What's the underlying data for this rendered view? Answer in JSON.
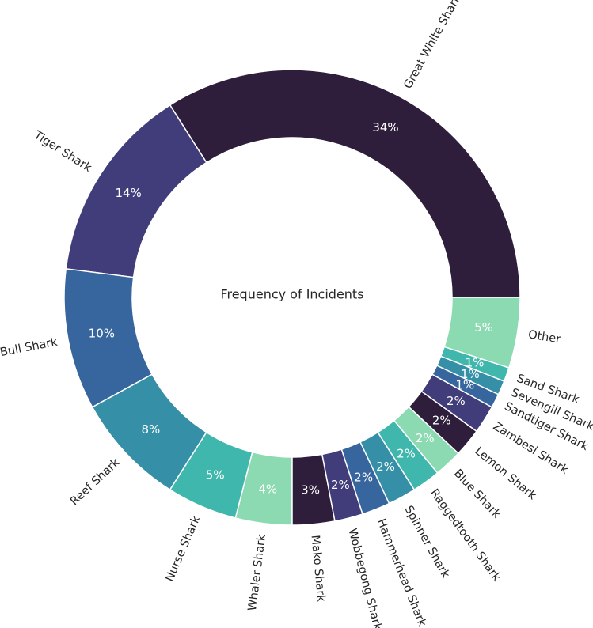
{
  "chart_data": {
    "type": "pie",
    "variant": "donut",
    "title": "Frequency of Incidents",
    "categories": [
      "Great White Shark",
      "Tiger Shark",
      "Bull Shark",
      "Reef Shark",
      "Nurse Shark",
      "Whaler Shark",
      "Mako Shark",
      "Wobbegong Shark",
      "Hammerhead Shark",
      "Spinner Shark",
      "Raggedtooth Shark",
      "Blue Shark",
      "Lemon Shark",
      "Zambesi Shark",
      "Sandtiger Shark",
      "Sevengill Shark",
      "Sand Shark",
      "Other"
    ],
    "values": [
      34,
      14,
      10,
      8,
      5,
      4,
      3,
      2,
      2,
      2,
      2,
      2,
      2,
      2,
      1,
      1,
      1,
      5
    ],
    "value_labels": [
      "34%",
      "14%",
      "10%",
      "8%",
      "5%",
      "4%",
      "3%",
      "2%",
      "2%",
      "2%",
      "2%",
      "2%",
      "2%",
      "2%",
      "1%",
      "1%",
      "1%",
      "5%"
    ],
    "colors": [
      "#2e1e3b",
      "#413d7b",
      "#37659e",
      "#348fa7",
      "#40b7ad",
      "#8bdab2",
      "#2e1e3b",
      "#413d7b",
      "#37659e",
      "#348fa7",
      "#40b7ad",
      "#8bdab2",
      "#2e1e3b",
      "#413d7b",
      "#37659e",
      "#348fa7",
      "#40b7ad",
      "#8bdab2"
    ],
    "start_angle_deg": 0,
    "direction": "counterclockwise",
    "legend": "none"
  }
}
